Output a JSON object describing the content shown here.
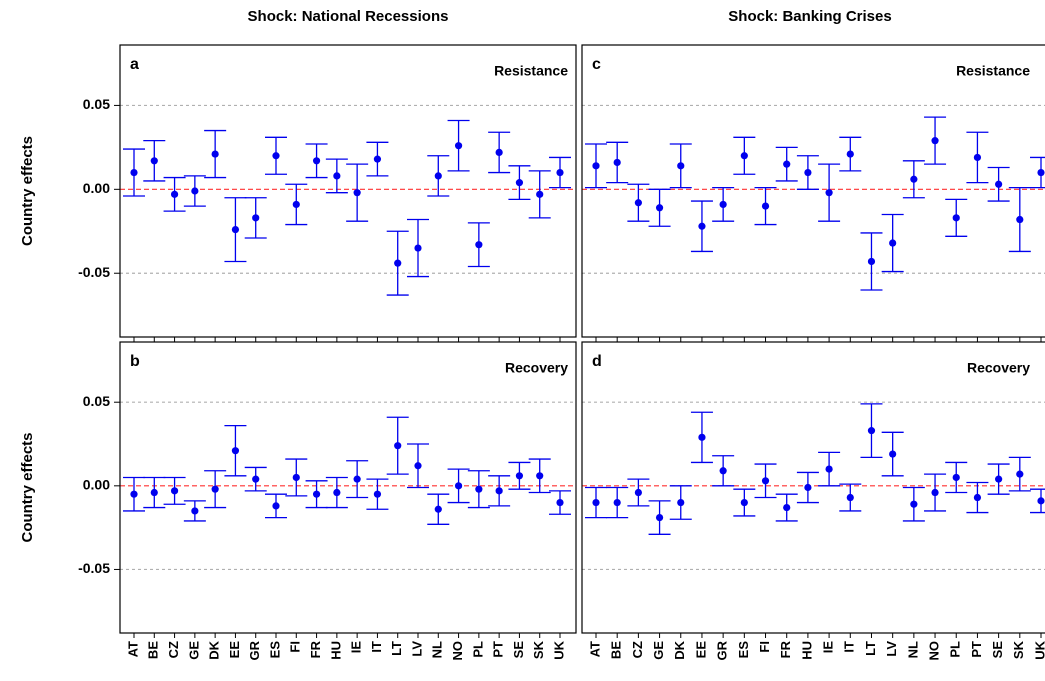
{
  "chart_data": [
    {
      "type": "errorbar",
      "title": "Shock: National Recessions",
      "panel": "a",
      "label": "Resistance",
      "ylabel": "Country effects",
      "color": "#0000ee",
      "grid": true,
      "ylim": [
        -0.088,
        0.086
      ],
      "yticks": [
        0.05,
        {
          "value": 0,
          "label": "0.00"
        },
        -0.05
      ],
      "values": [
        0.01,
        0.017,
        -0.003,
        -0.001,
        0.021,
        -0.024,
        -0.017,
        0.02,
        -0.009,
        0.017,
        0.008,
        -0.002,
        0.018,
        -0.044,
        -0.035,
        0.008,
        0.026,
        -0.033,
        0.022,
        0.004,
        -0.003,
        0.01
      ],
      "errors": [
        0.014,
        0.012,
        0.01,
        0.009,
        0.014,
        0.019,
        0.012,
        0.011,
        0.012,
        0.01,
        0.01,
        0.017,
        0.01,
        0.019,
        0.017,
        0.012,
        0.015,
        0.013,
        0.012,
        0.01,
        0.014,
        0.009
      ]
    },
    {
      "type": "errorbar",
      "panel": "b",
      "label": "Recovery",
      "ylabel": "Country effects",
      "color": "#0000ee",
      "grid": true,
      "ylim": [
        -0.088,
        0.086
      ],
      "yticks": [
        0.05,
        {
          "value": 0,
          "label": "0.00"
        },
        -0.05
      ],
      "categories": [
        "AT",
        "BE",
        "CZ",
        "GE",
        "DK",
        "EE",
        "GR",
        "ES",
        "FI",
        "FR",
        "HU",
        "IE",
        "IT",
        "LT",
        "LV",
        "NL",
        "NO",
        "PL",
        "PT",
        "SE",
        "SK",
        "UK"
      ],
      "values": [
        -0.005,
        -0.004,
        -0.003,
        -0.015,
        -0.002,
        0.021,
        0.004,
        -0.012,
        0.005,
        -0.005,
        -0.004,
        0.004,
        -0.005,
        0.024,
        0.012,
        -0.014,
        0.0,
        -0.002,
        -0.003,
        0.006,
        0.006,
        -0.01
      ],
      "errors": [
        0.01,
        0.009,
        0.008,
        0.006,
        0.011,
        0.015,
        0.007,
        0.007,
        0.011,
        0.008,
        0.009,
        0.011,
        0.009,
        0.017,
        0.013,
        0.009,
        0.01,
        0.011,
        0.009,
        0.008,
        0.01,
        0.007
      ]
    },
    {
      "type": "errorbar",
      "title": "Shock: Banking Crises",
      "panel": "c",
      "label": "Resistance",
      "color": "#0000ee",
      "grid": true,
      "ylim": [
        -0.088,
        0.086
      ],
      "yticks": [
        0.05,
        0,
        -0.05
      ],
      "values": [
        0.014,
        0.016,
        -0.008,
        -0.011,
        0.014,
        -0.022,
        -0.009,
        0.02,
        -0.01,
        0.015,
        0.01,
        -0.002,
        0.021,
        -0.043,
        -0.032,
        0.006,
        0.029,
        -0.017,
        0.019,
        0.003,
        -0.018,
        0.01
      ],
      "errors": [
        0.013,
        0.012,
        0.011,
        0.011,
        0.013,
        0.015,
        0.01,
        0.011,
        0.011,
        0.01,
        0.01,
        0.017,
        0.01,
        0.017,
        0.017,
        0.011,
        0.014,
        0.011,
        0.015,
        0.01,
        0.019,
        0.009
      ]
    },
    {
      "type": "errorbar",
      "panel": "d",
      "label": "Recovery",
      "color": "#0000ee",
      "grid": true,
      "ylim": [
        -0.088,
        0.086
      ],
      "yticks": [
        0.05,
        0,
        -0.05
      ],
      "categories": [
        "AT",
        "BE",
        "CZ",
        "GE",
        "DK",
        "EE",
        "GR",
        "ES",
        "FI",
        "FR",
        "HU",
        "IE",
        "IT",
        "LT",
        "LV",
        "NL",
        "NO",
        "PL",
        "PT",
        "SE",
        "SK",
        "UK"
      ],
      "values": [
        -0.01,
        -0.01,
        -0.004,
        -0.019,
        -0.01,
        0.029,
        0.009,
        -0.01,
        0.003,
        -0.013,
        -0.001,
        0.01,
        -0.007,
        0.033,
        0.019,
        -0.011,
        -0.004,
        0.005,
        -0.007,
        0.004,
        0.007,
        -0.009
      ],
      "errors": [
        0.009,
        0.009,
        0.008,
        0.01,
        0.01,
        0.015,
        0.009,
        0.008,
        0.01,
        0.008,
        0.009,
        0.01,
        0.008,
        0.016,
        0.013,
        0.01,
        0.011,
        0.009,
        0.009,
        0.009,
        0.01,
        0.007
      ]
    }
  ]
}
